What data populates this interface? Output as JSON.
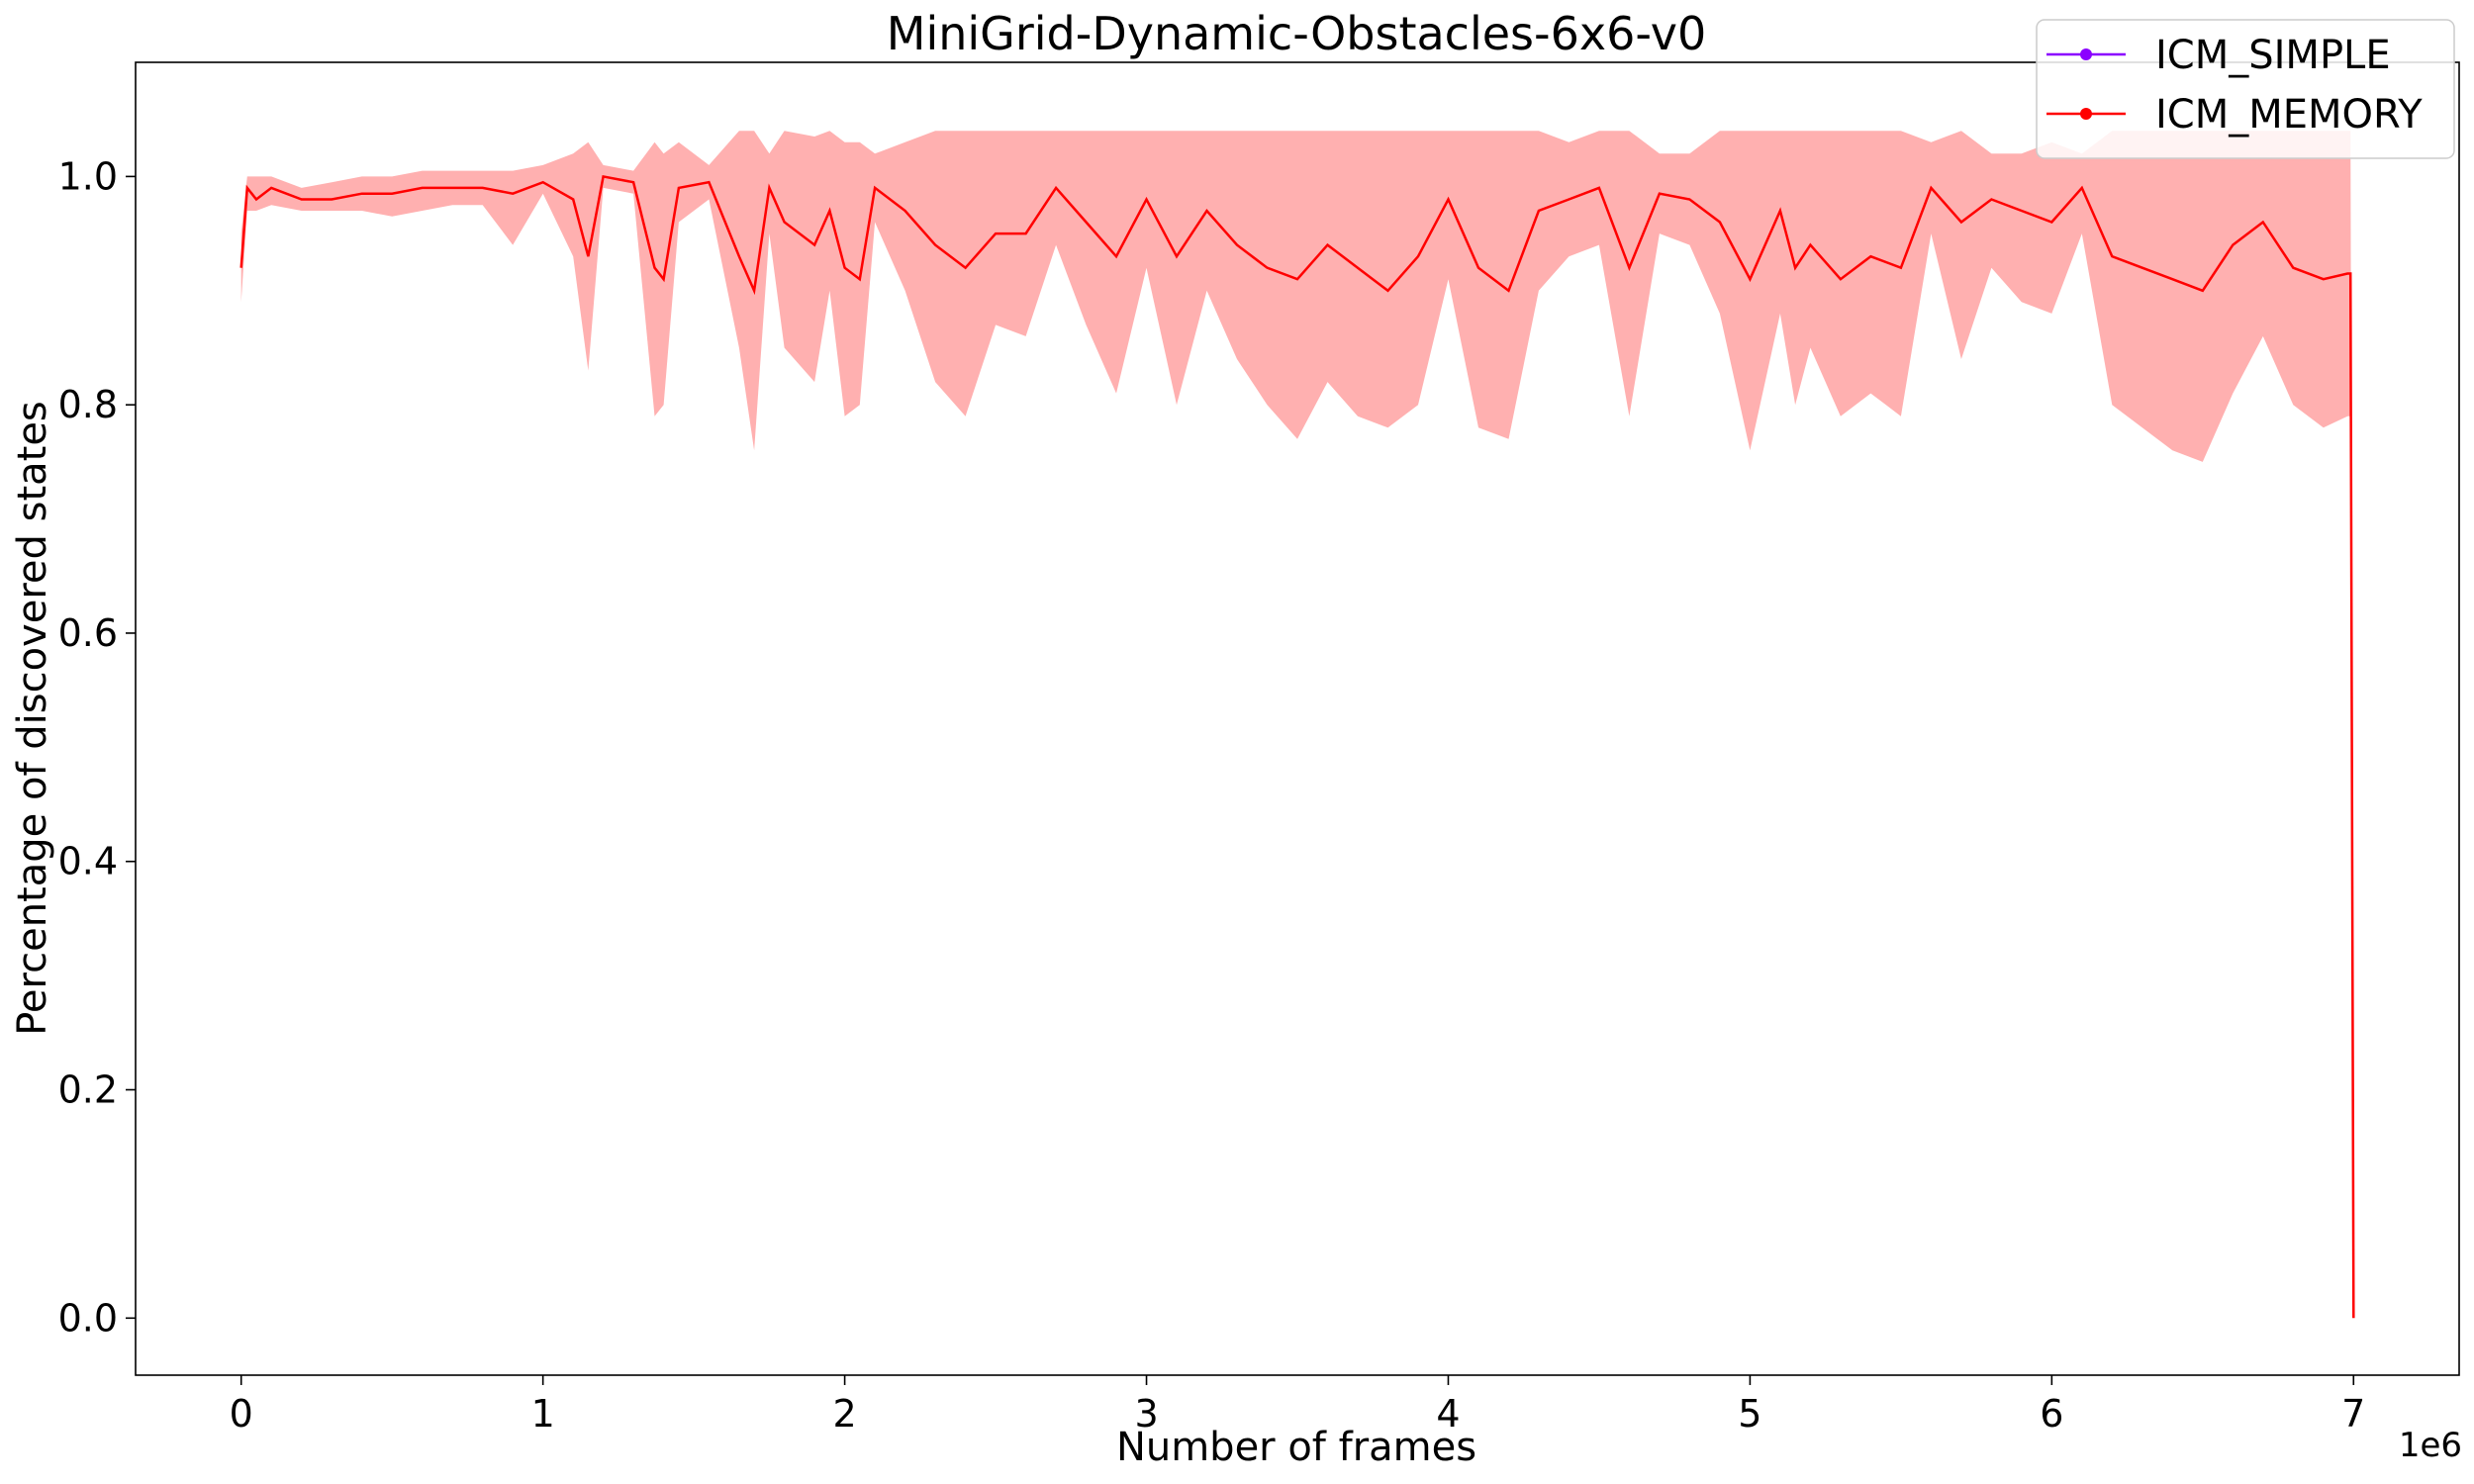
{
  "chart_data": {
    "type": "line",
    "title": "MiniGrid-Dynamic-Obstacles-6x6-v0",
    "xlabel": "Number of frames",
    "ylabel": "Percentage of discovered states",
    "x_offset_label": "1e6",
    "xlim": [
      -0.35,
      7.35
    ],
    "ylim": [
      -0.05,
      1.1
    ],
    "x_ticks": [
      0,
      1,
      2,
      3,
      4,
      5,
      6,
      7
    ],
    "x_tick_labels": [
      "0",
      "1",
      "2",
      "3",
      "4",
      "5",
      "6",
      "7"
    ],
    "y_ticks": [
      0.0,
      0.2,
      0.4,
      0.6,
      0.8,
      1.0
    ],
    "y_tick_labels": [
      "0.0",
      "0.2",
      "0.4",
      "0.6",
      "0.8",
      "1.0"
    ],
    "grid": false,
    "legend_position": "top-right",
    "series": [
      {
        "name": "ICM_SIMPLE",
        "color": "#8b00ff",
        "x": [],
        "mean": [],
        "lower": [],
        "upper": []
      },
      {
        "name": "ICM_MEMORY",
        "color": "#ff0000",
        "band_color": "#ffb0b0",
        "x": [
          0,
          0.02,
          0.05,
          0.1,
          0.2,
          0.3,
          0.4,
          0.5,
          0.6,
          0.7,
          0.8,
          0.9,
          1.0,
          1.1,
          1.15,
          1.2,
          1.3,
          1.37,
          1.4,
          1.45,
          1.55,
          1.65,
          1.7,
          1.75,
          1.8,
          1.9,
          1.95,
          2.0,
          2.05,
          2.1,
          2.2,
          2.3,
          2.4,
          2.5,
          2.6,
          2.7,
          2.8,
          2.9,
          3.0,
          3.1,
          3.2,
          3.3,
          3.4,
          3.5,
          3.6,
          3.7,
          3.8,
          3.9,
          4.0,
          4.1,
          4.2,
          4.3,
          4.4,
          4.5,
          4.6,
          4.7,
          4.8,
          4.9,
          5.0,
          5.1,
          5.15,
          5.2,
          5.3,
          5.4,
          5.5,
          5.6,
          5.7,
          5.8,
          5.9,
          6.0,
          6.1,
          6.2,
          6.3,
          6.4,
          6.5,
          6.6,
          6.7,
          6.8,
          6.9,
          6.98,
          6.99,
          7.0
        ],
        "mean": [
          0.92,
          0.99,
          0.98,
          0.99,
          0.98,
          0.98,
          0.985,
          0.985,
          0.99,
          0.99,
          0.99,
          0.985,
          0.995,
          0.98,
          0.93,
          1.0,
          0.995,
          0.92,
          0.91,
          0.99,
          0.995,
          0.93,
          0.9,
          0.99,
          0.96,
          0.94,
          0.97,
          0.92,
          0.91,
          0.99,
          0.97,
          0.94,
          0.92,
          0.95,
          0.95,
          0.99,
          0.96,
          0.93,
          0.98,
          0.93,
          0.97,
          0.94,
          0.92,
          0.91,
          0.94,
          0.92,
          0.9,
          0.93,
          0.98,
          0.92,
          0.9,
          0.97,
          0.98,
          0.99,
          0.92,
          0.985,
          0.98,
          0.96,
          0.91,
          0.97,
          0.92,
          0.94,
          0.91,
          0.93,
          0.92,
          0.99,
          0.96,
          0.98,
          0.97,
          0.96,
          0.99,
          0.93,
          0.92,
          0.91,
          0.9,
          0.94,
          0.96,
          0.92,
          0.91,
          0.915,
          0.915,
          0.0
        ],
        "lower": [
          0.89,
          0.97,
          0.97,
          0.975,
          0.97,
          0.97,
          0.97,
          0.965,
          0.97,
          0.975,
          0.975,
          0.94,
          0.985,
          0.93,
          0.83,
          0.99,
          0.985,
          0.79,
          0.8,
          0.96,
          0.98,
          0.85,
          0.76,
          0.95,
          0.85,
          0.82,
          0.9,
          0.79,
          0.8,
          0.96,
          0.9,
          0.82,
          0.79,
          0.87,
          0.86,
          0.94,
          0.87,
          0.81,
          0.92,
          0.8,
          0.9,
          0.84,
          0.8,
          0.77,
          0.82,
          0.79,
          0.78,
          0.8,
          0.91,
          0.78,
          0.77,
          0.9,
          0.93,
          0.94,
          0.79,
          0.95,
          0.94,
          0.88,
          0.76,
          0.88,
          0.8,
          0.85,
          0.79,
          0.81,
          0.79,
          0.95,
          0.84,
          0.92,
          0.89,
          0.88,
          0.95,
          0.8,
          0.78,
          0.76,
          0.75,
          0.81,
          0.86,
          0.8,
          0.78,
          0.79,
          0.79,
          0.0
        ],
        "upper": [
          0.95,
          1.0,
          1.0,
          1.0,
          0.99,
          0.995,
          1.0,
          1.0,
          1.005,
          1.005,
          1.005,
          1.005,
          1.01,
          1.02,
          1.03,
          1.01,
          1.005,
          1.03,
          1.02,
          1.03,
          1.01,
          1.04,
          1.04,
          1.02,
          1.04,
          1.035,
          1.04,
          1.03,
          1.03,
          1.02,
          1.03,
          1.04,
          1.04,
          1.04,
          1.04,
          1.04,
          1.04,
          1.04,
          1.04,
          1.04,
          1.04,
          1.04,
          1.04,
          1.04,
          1.04,
          1.04,
          1.04,
          1.04,
          1.04,
          1.04,
          1.04,
          1.04,
          1.03,
          1.04,
          1.04,
          1.02,
          1.02,
          1.04,
          1.04,
          1.04,
          1.04,
          1.04,
          1.04,
          1.04,
          1.04,
          1.03,
          1.04,
          1.02,
          1.02,
          1.03,
          1.02,
          1.04,
          1.04,
          1.04,
          1.04,
          1.04,
          1.04,
          1.04,
          1.04,
          1.04,
          1.04,
          0.0
        ]
      }
    ]
  }
}
